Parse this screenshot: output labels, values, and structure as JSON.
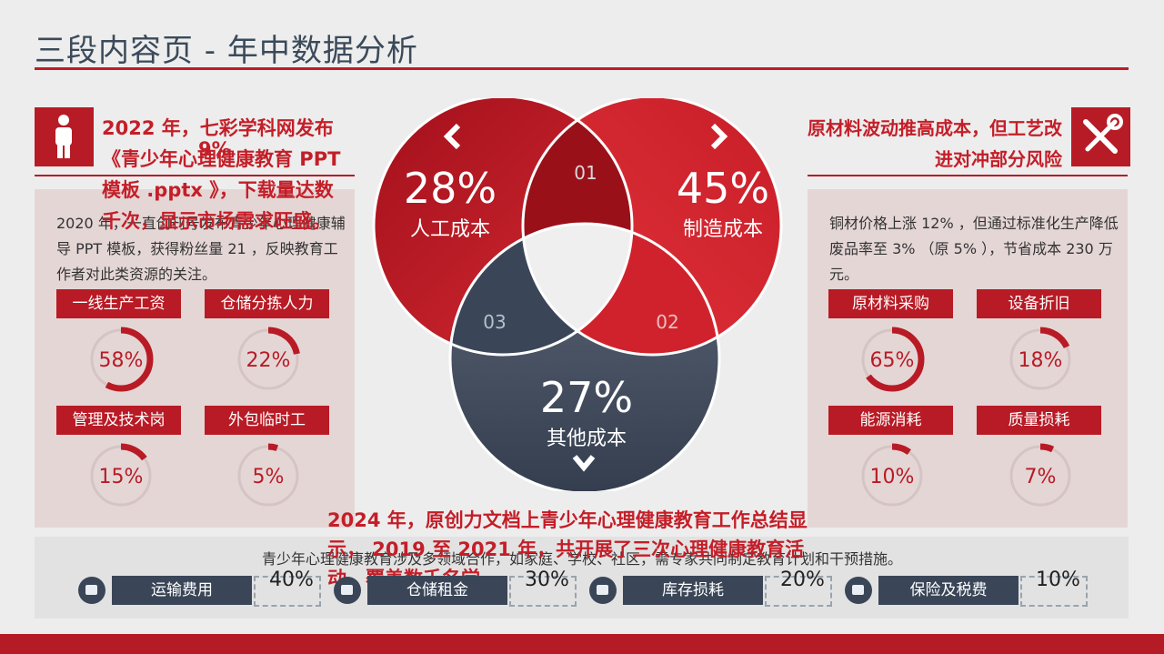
{
  "title": "三段内容页 - 年中数据分析",
  "left": {
    "headline": "2022 年，七彩学科网发布《青少年心理健康教育 PPT 模板 .pptx 》，下载量达数千次，显示市场需求旺盛。",
    "overlap_badge": "9%",
    "body": "2020 年，一直创刊号发布青少年心理健康辅导 PPT 模板，获得粉丝量 21 ，反映教育工作者对此类资源的关注。",
    "items": [
      {
        "label": "一线生产工资",
        "pct": "58%",
        "value": 58
      },
      {
        "label": "仓储分拣人力",
        "pct": "22%",
        "value": 22
      },
      {
        "label": "管理及技术岗",
        "pct": "15%",
        "value": 15
      },
      {
        "label": "外包临时工",
        "pct": "5%",
        "value": 5
      }
    ]
  },
  "right": {
    "headline": "原材料波动推高成本，但工艺改进对冲部分风险",
    "body": "铜材价格上涨 12% ，但通过标准化生产降低废品率至 3% （原 5% ），节省成本 230 万元。",
    "items": [
      {
        "label": "原材料采购",
        "pct": "65%",
        "value": 65
      },
      {
        "label": "设备折旧",
        "pct": "18%",
        "value": 18
      },
      {
        "label": "能源消耗",
        "pct": "10%",
        "value": 10
      },
      {
        "label": "质量损耗",
        "pct": "7%",
        "value": 7
      }
    ]
  },
  "venn": {
    "circles": [
      {
        "pct": "28%",
        "label": "人工成本"
      },
      {
        "pct": "45%",
        "label": "制造成本"
      },
      {
        "pct": "27%",
        "label": "其他成本"
      }
    ],
    "intersections": [
      "01",
      "02",
      "03"
    ],
    "nav_left": "‹",
    "nav_right": "›",
    "nav_down": "⌄"
  },
  "bottom": {
    "headline": "2024 年，原创力文档上青少年心理健康教育工作总结显示， 2019 至 2021 年，共开展了三次心理健康教育活动，覆盖数千名学",
    "body": "青少年心理健康教育涉及多领域合作，如家庭、学校、社区，需专家共同制定教育计划和干预措施。",
    "items": [
      {
        "label": "运输费用",
        "pct": "40%"
      },
      {
        "label": "仓储租金",
        "pct": "30%"
      },
      {
        "label": "库存损耗",
        "pct": "20%"
      },
      {
        "label": "保险及税费",
        "pct": "10%"
      }
    ]
  },
  "colors": {
    "accent": "#b81b25",
    "dark": "#3a4658",
    "panel": "#e5d6d6"
  }
}
